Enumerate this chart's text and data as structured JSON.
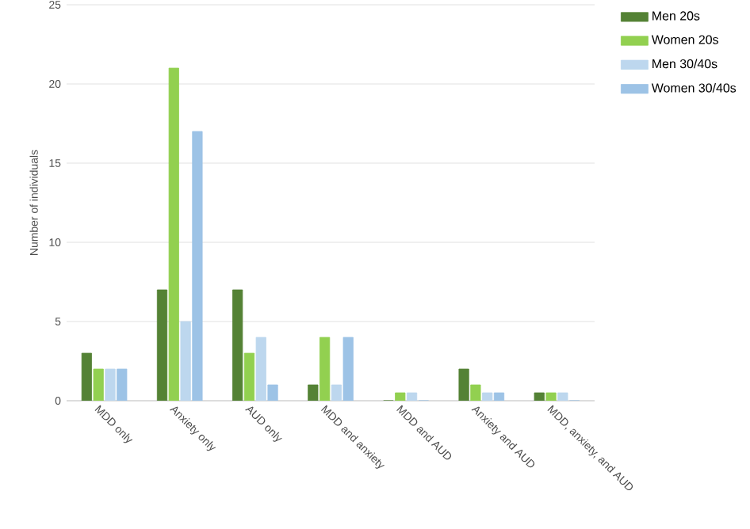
{
  "chart_data": {
    "type": "bar",
    "ylabel": "Number of individuals",
    "categories": [
      "MDD only",
      "Anxiety only",
      "AUD only",
      "MDD and anxiety",
      "MDD and AUD",
      "Anxiety and AUD",
      "MDD, anxiety, and AUD"
    ],
    "series": [
      {
        "name": "Men 20s",
        "color": "#548235",
        "values": [
          3,
          7,
          7,
          1,
          0,
          2,
          0.5
        ]
      },
      {
        "name": "Women 20s",
        "color": "#92d050",
        "values": [
          2,
          21,
          3,
          4,
          0.5,
          1,
          0.5
        ]
      },
      {
        "name": "Men 30/40s",
        "color": "#bdd7ee",
        "values": [
          2,
          5,
          4,
          1,
          0.5,
          0.5,
          0.5
        ]
      },
      {
        "name": "Women 30/40s",
        "color": "#9dc3e6",
        "values": [
          2,
          17,
          1,
          4,
          0,
          0.5,
          0
        ]
      }
    ],
    "ylim": [
      0,
      25
    ],
    "yticks": [
      0,
      5,
      10,
      15,
      20,
      25
    ],
    "grid": "y",
    "legend": "right"
  }
}
